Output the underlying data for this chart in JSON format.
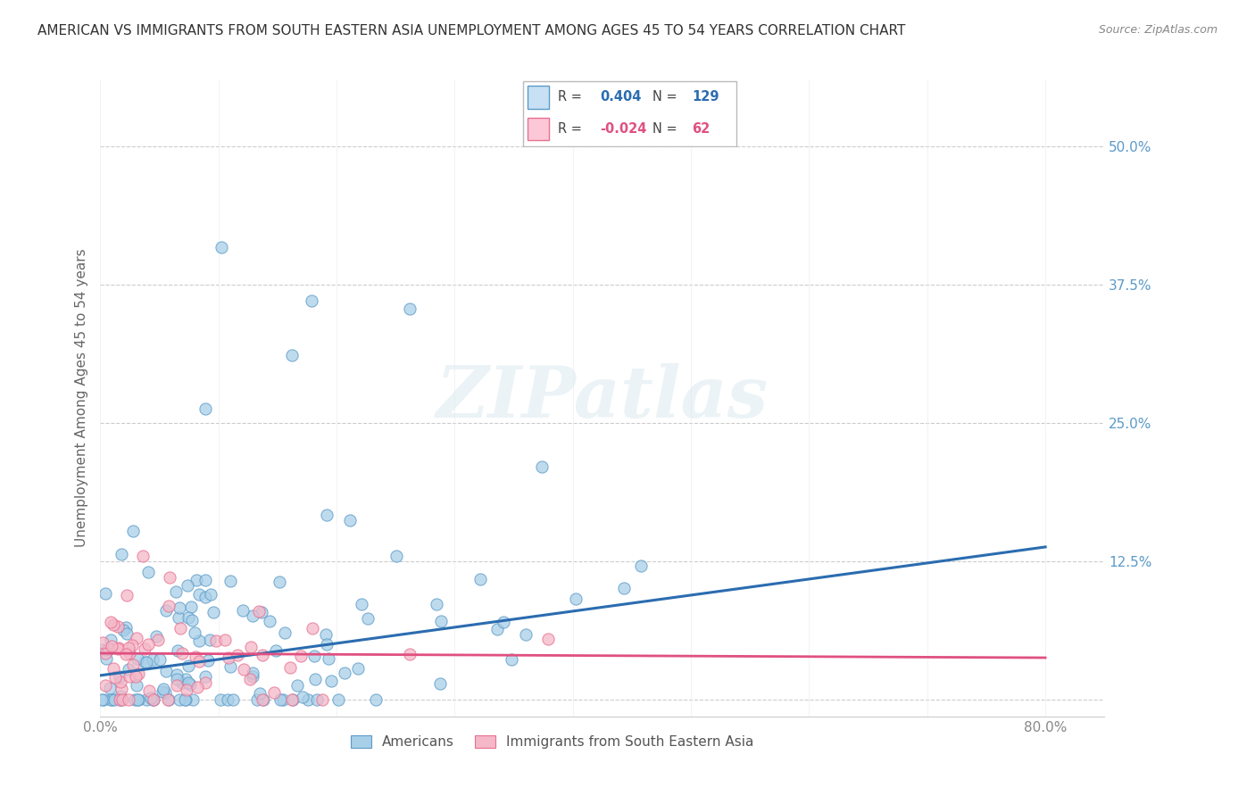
{
  "title": "AMERICAN VS IMMIGRANTS FROM SOUTH EASTERN ASIA UNEMPLOYMENT AMONG AGES 45 TO 54 YEARS CORRELATION CHART",
  "source": "Source: ZipAtlas.com",
  "ylabel": "Unemployment Among Ages 45 to 54 years",
  "xlim": [
    0.0,
    0.85
  ],
  "ylim": [
    -0.015,
    0.56
  ],
  "xticks": [
    0.0,
    0.1,
    0.2,
    0.3,
    0.4,
    0.5,
    0.6,
    0.7,
    0.8
  ],
  "yticks": [
    0.0,
    0.125,
    0.25,
    0.375,
    0.5
  ],
  "grid_color": "#cccccc",
  "background_color": "#ffffff",
  "blue_color": "#a8cfe8",
  "pink_color": "#f4b8c8",
  "blue_edge_color": "#5b9ac8",
  "pink_edge_color": "#e87090",
  "blue_line_color": "#2b6cb0",
  "pink_line_color": "#e05080",
  "legend_blue_fill": "#c8e0f4",
  "legend_pink_fill": "#fcc8d8",
  "legend_blue_border": "#5b9ac8",
  "legend_pink_border": "#e87090",
  "R1": 0.404,
  "N1": 129,
  "R2": -0.024,
  "N2": 62,
  "seed": 7,
  "blue_intercept": 0.018,
  "blue_slope": 0.145,
  "blue_scatter": 0.048,
  "pink_intercept": 0.038,
  "pink_slope": -0.008,
  "pink_scatter": 0.025,
  "ytick_color": "#5b9ac8",
  "xtick_color": "#888888"
}
